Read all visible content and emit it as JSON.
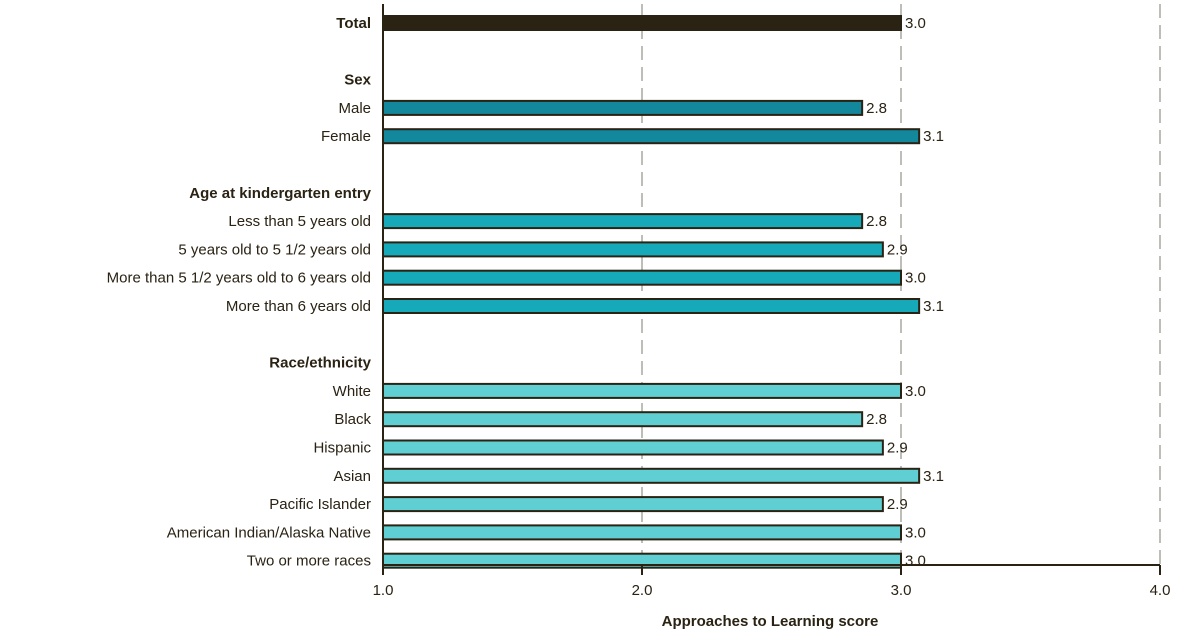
{
  "chart_data": {
    "type": "bar",
    "orientation": "horizontal",
    "xlabel": "Approaches to Learning score",
    "xlim": [
      1.0,
      4.0
    ],
    "xticks": [
      "1.0",
      "2.0",
      "3.0",
      "4.0"
    ],
    "grid": true,
    "groups": [
      {
        "heading": "",
        "color": "#2a2213",
        "rows": [
          {
            "label": "Total",
            "value": 3.0,
            "display": "3.0"
          }
        ]
      },
      {
        "heading": "Sex",
        "color": "#13889d",
        "rows": [
          {
            "label": "Male",
            "value": 2.85,
            "display": "2.8"
          },
          {
            "label": "Female",
            "value": 3.07,
            "display": "3.1"
          }
        ]
      },
      {
        "heading": "Age at kindergarten entry",
        "color": "#16a9b9",
        "rows": [
          {
            "label": "Less than 5 years old",
            "value": 2.85,
            "display": "2.8"
          },
          {
            "label": "5 years old to 5 1/2 years old",
            "value": 2.93,
            "display": "2.9"
          },
          {
            "label": "More than 5 1/2 years old to 6 years old",
            "value": 3.0,
            "display": "3.0"
          },
          {
            "label": "More than 6 years old",
            "value": 3.07,
            "display": "3.1"
          }
        ]
      },
      {
        "heading": "Race/ethnicity",
        "color": "#5fcfd3",
        "rows": [
          {
            "label": "White",
            "value": 3.0,
            "display": "3.0"
          },
          {
            "label": "Black",
            "value": 2.85,
            "display": "2.8"
          },
          {
            "label": "Hispanic",
            "value": 2.93,
            "display": "2.9"
          },
          {
            "label": "Asian",
            "value": 3.07,
            "display": "3.1"
          },
          {
            "label": "Pacific Islander",
            "value": 2.93,
            "display": "2.9"
          },
          {
            "label": "American Indian/Alaska Native",
            "value": 3.0,
            "display": "3.0"
          },
          {
            "label": "Two or more races",
            "value": 3.0,
            "display": "3.0"
          }
        ]
      }
    ]
  }
}
